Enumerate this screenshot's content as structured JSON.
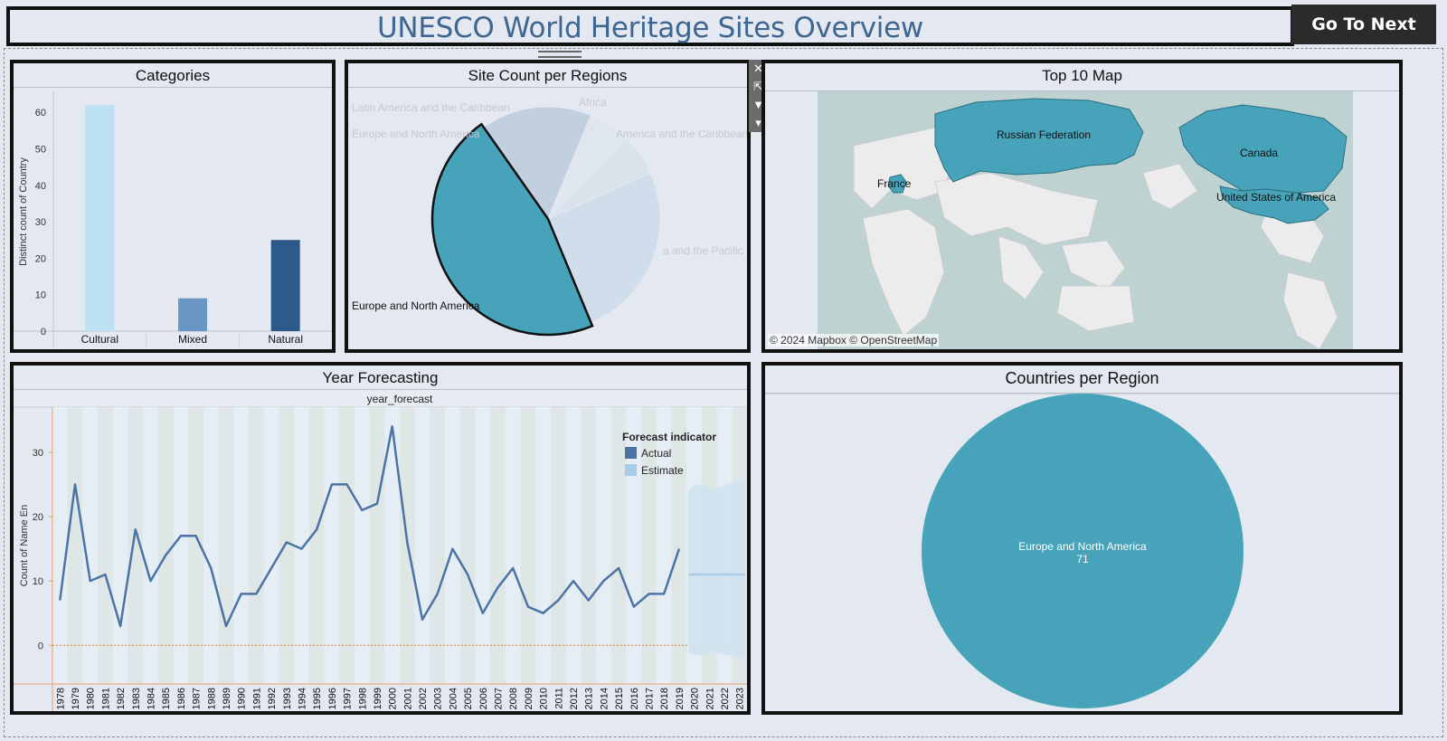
{
  "header": {
    "title": "UNESCO World Heritage Sites Overview",
    "next_button": "Go To Next"
  },
  "toolbar": {
    "close": "✕",
    "popout": "⇱",
    "filter": "▼",
    "more": "▾"
  },
  "categories_panel": {
    "title": "Categories",
    "chart_data": {
      "type": "bar",
      "categories": [
        "Cultural",
        "Mixed",
        "Natural"
      ],
      "values": [
        62,
        9,
        25
      ],
      "ylabel": "Distinct count of Country",
      "yticks": [
        "0",
        "10",
        "20",
        "30",
        "40",
        "50",
        "60"
      ],
      "ylim": [
        0,
        65
      ],
      "colors": [
        "#bde0f2",
        "#6996c3",
        "#2c5a8a"
      ]
    }
  },
  "site_count_panel": {
    "title": "Site Count per Regions",
    "chart_data": {
      "type": "pie",
      "slices": [
        {
          "label": "Europe and North America",
          "value": 46.5,
          "color": "#46a3ba",
          "highlight": true
        },
        {
          "label": "Latin America and the Caribbean",
          "value": 16,
          "color": "#c2cfdf"
        },
        {
          "label": "Africa",
          "value": 6,
          "color": "#dfe6ee"
        },
        {
          "label": "Latin America and the Caribbean",
          "value": 6,
          "color": "#d8e3ec"
        },
        {
          "label": "Asia and the Pacific",
          "value": 25.5,
          "color": "#cfdeea"
        }
      ],
      "visible_labels": [
        "Latin America and the Caribbean",
        "Africa",
        "Europe and North America",
        "America and the Caribbean",
        "a and the Pacific",
        "Europe and North America"
      ]
    }
  },
  "map_panel": {
    "title": "Top 10 Map",
    "labels": [
      "Russian Federation",
      "Canada",
      "France",
      "United States of America"
    ],
    "copyright": "© 2024 Mapbox © OpenStreetMap",
    "highlight_color": "#46a3ba",
    "water_color": "#bfd2d2",
    "land_color": "#ececec"
  },
  "forecast_panel": {
    "title": "Year Forecasting",
    "subtitle": "year_forecast",
    "legend_title": "Forecast indicator",
    "legend": [
      {
        "label": "Actual",
        "color": "#4b74a5"
      },
      {
        "label": "Estimate",
        "color": "#a8cde8"
      }
    ],
    "chart_data": {
      "type": "line",
      "ylabel": "Count of Name En",
      "yticks": [
        "0",
        "10",
        "20",
        "30"
      ],
      "ylim": [
        -6,
        37
      ],
      "years": [
        "1978",
        "1979",
        "1980",
        "1981",
        "1982",
        "1983",
        "1984",
        "1985",
        "1986",
        "1987",
        "1988",
        "1989",
        "1990",
        "1991",
        "1992",
        "1993",
        "1994",
        "1995",
        "1996",
        "1997",
        "1998",
        "1999",
        "2000",
        "2001",
        "2002",
        "2003",
        "2004",
        "2005",
        "2006",
        "2007",
        "2008",
        "2009",
        "2010",
        "2011",
        "2012",
        "2013",
        "2014",
        "2015",
        "2016",
        "2017",
        "2018",
        "2019",
        "2020",
        "2021",
        "2022",
        "2023"
      ],
      "series": [
        {
          "name": "Actual",
          "values": [
            7,
            25,
            10,
            11,
            3,
            18,
            10,
            14,
            17,
            17,
            12,
            3,
            8,
            8,
            12,
            16,
            15,
            18,
            25,
            25,
            21,
            22,
            34,
            16,
            4,
            8,
            15,
            11,
            5,
            9,
            12,
            6,
            5,
            7,
            10,
            7,
            10,
            12,
            6,
            8,
            8,
            15
          ]
        },
        {
          "name": "Estimate",
          "values": [
            11,
            11,
            11,
            11
          ],
          "lower": [
            -1,
            -1,
            -1,
            -1
          ],
          "upper": [
            23,
            24,
            25,
            26
          ]
        }
      ]
    }
  },
  "countries_panel": {
    "title": "Countries per Region",
    "chart_data": {
      "type": "pie",
      "slices": [
        {
          "label": "Europe and North America",
          "value": 71,
          "color": "#46a3ba"
        }
      ]
    },
    "label_text": "Europe and North America",
    "value_text": "71"
  }
}
